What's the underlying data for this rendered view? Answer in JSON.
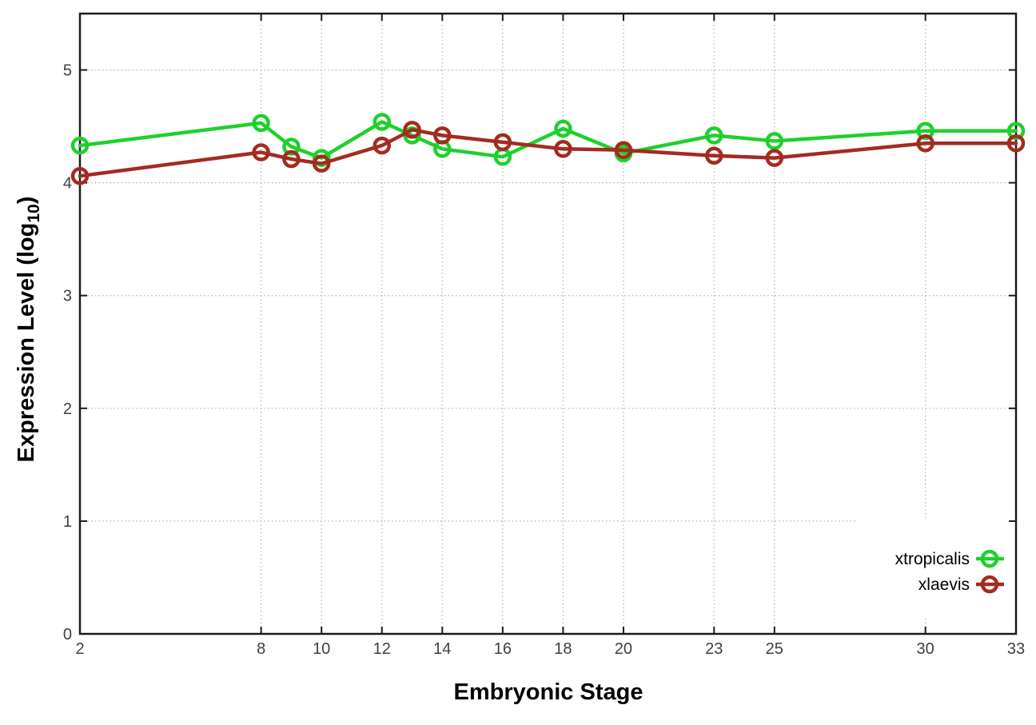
{
  "figure": {
    "background": "#ffffff"
  },
  "chart_data": {
    "type": "line",
    "title": "",
    "xlabel": "Embryonic Stage",
    "ylabel": "Expression Level (log10)",
    "ylabel_rich": {
      "main": "Expression Level (log",
      "sub": "10",
      "end": ")"
    },
    "xlim": [
      2,
      33
    ],
    "ylim": [
      0,
      5.5
    ],
    "x_ticks": [
      2,
      8,
      10,
      12,
      14,
      16,
      18,
      20,
      23,
      25,
      30,
      33
    ],
    "y_ticks": [
      0,
      1,
      2,
      3,
      4,
      5
    ],
    "grid": true,
    "legend_position": "inside-bottom-right",
    "colors": {
      "axis": "#1c1c1c",
      "grid": "#b0b0b0",
      "tick_label": "#404040",
      "xtropicalis": "#1fd02c",
      "xlaevis": "#a32b20"
    },
    "series": [
      {
        "name": "xtropicalis",
        "color": "#1fd02c",
        "marker": "open-circle",
        "x": [
          2,
          8,
          9,
          10,
          12,
          13,
          14,
          16,
          18,
          20,
          23,
          25,
          30,
          33
        ],
        "y": [
          4.33,
          4.53,
          4.32,
          4.22,
          4.54,
          4.42,
          4.3,
          4.23,
          4.48,
          4.26,
          4.42,
          4.37,
          4.46,
          4.46
        ]
      },
      {
        "name": "xlaevis",
        "color": "#a32b20",
        "marker": "open-circle",
        "x": [
          2,
          8,
          9,
          10,
          12,
          13,
          14,
          16,
          18,
          20,
          23,
          25,
          30,
          33
        ],
        "y": [
          4.06,
          4.27,
          4.21,
          4.17,
          4.33,
          4.47,
          4.42,
          4.36,
          4.3,
          4.29,
          4.24,
          4.22,
          4.35,
          4.35
        ]
      }
    ]
  }
}
